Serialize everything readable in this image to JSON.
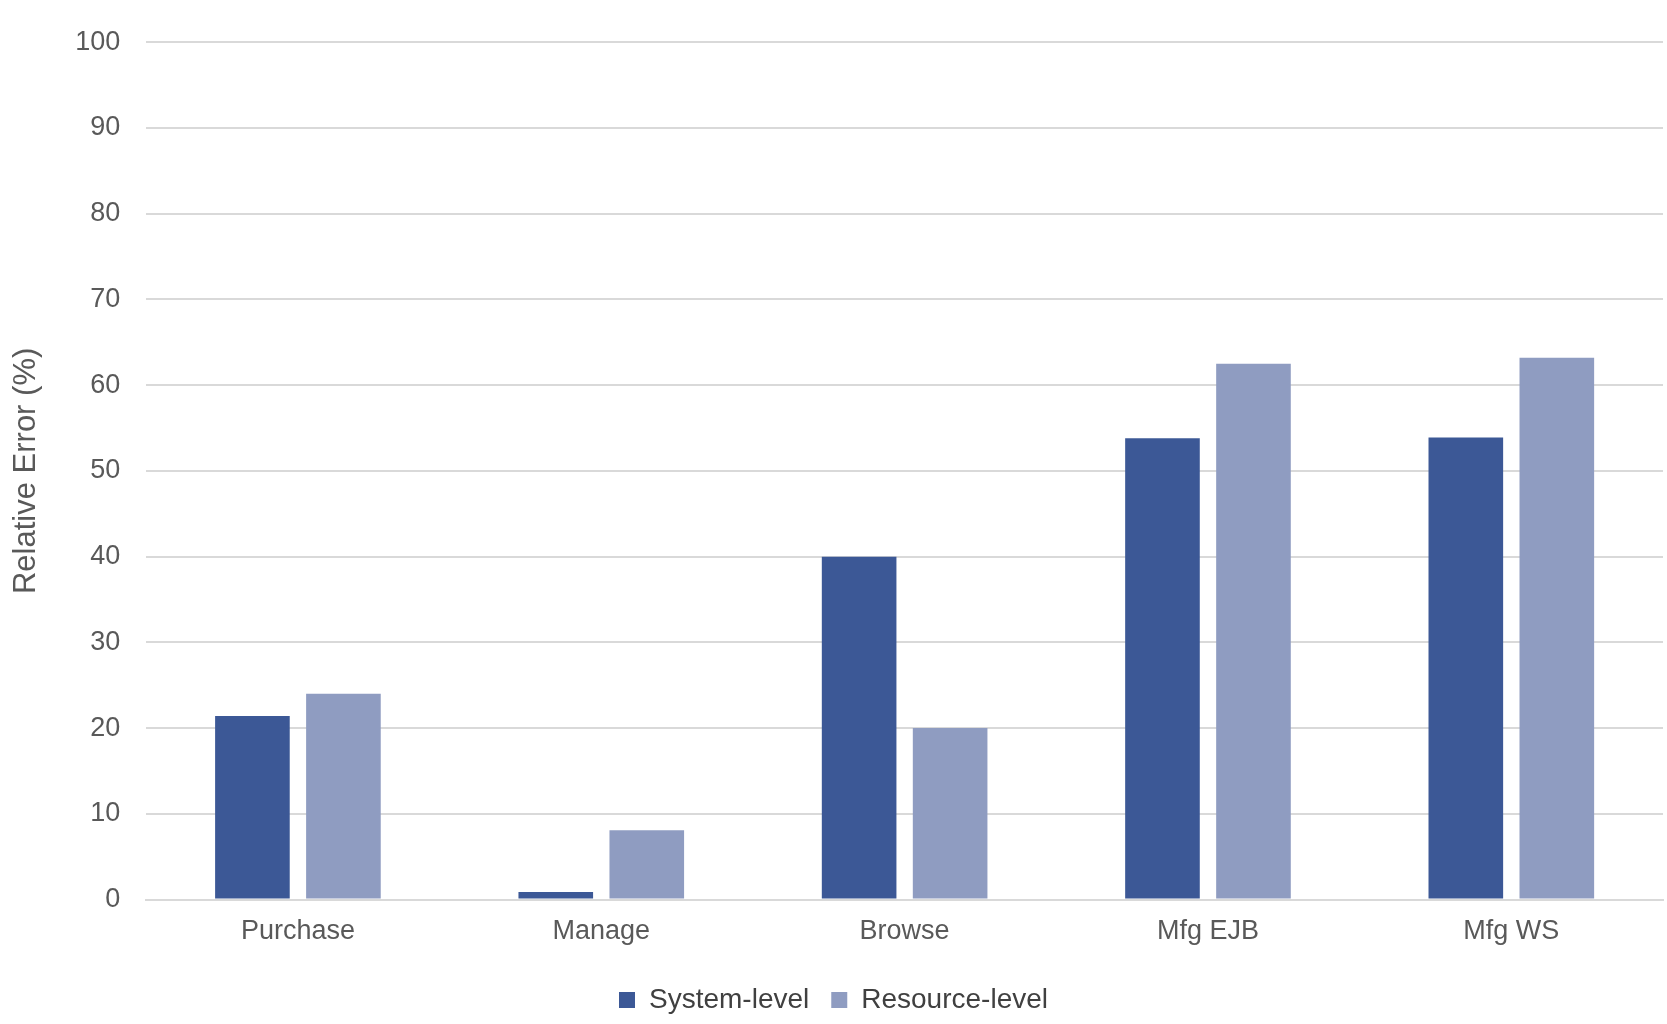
{
  "chart_data": {
    "type": "bar",
    "ylabel": "Relative Error (%)",
    "categories": [
      "Purchase",
      "Manage",
      "Browse",
      "Mfg EJB",
      "Mfg WS"
    ],
    "series": [
      {
        "name": "System-level",
        "color": "#3c5896",
        "values": [
          21.4,
          0.9,
          40,
          53.8,
          53.9
        ]
      },
      {
        "name": "Resource-level",
        "color": "#8f9cc1",
        "values": [
          24,
          8.1,
          20,
          62.5,
          63.2
        ]
      }
    ],
    "ylim": [
      0,
      100
    ],
    "yticks": [
      0,
      10,
      20,
      30,
      40,
      50,
      60,
      70,
      80,
      90,
      100
    ],
    "grid": "y",
    "legend": "bottom"
  }
}
